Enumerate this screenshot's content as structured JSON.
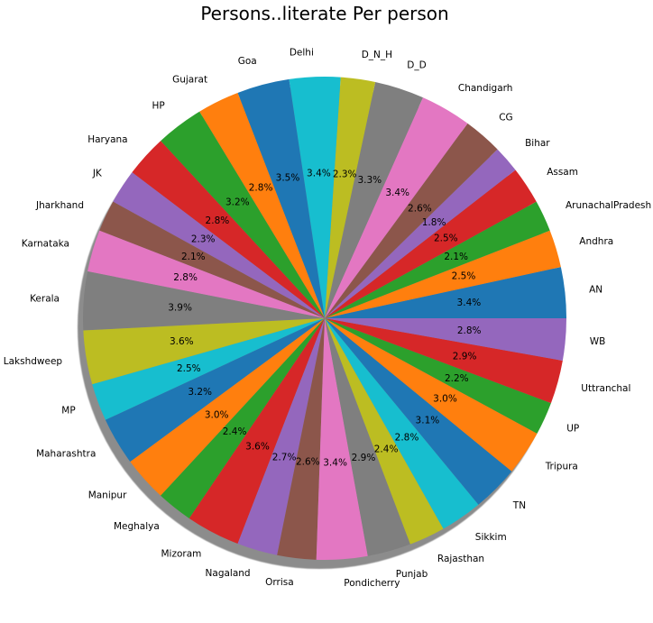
{
  "chart_data": {
    "type": "pie",
    "title": "Persons..literate Per person",
    "start_angle_deg": 0,
    "direction": "counterclockwise",
    "shadow": true,
    "legend": "none",
    "palette": [
      "#1f77b4",
      "#ff7f0e",
      "#2ca02c",
      "#d62728",
      "#9467bd",
      "#8c564b",
      "#e377c2",
      "#7f7f7f",
      "#bcbd22",
      "#17becf"
    ],
    "slices": [
      {
        "label": "AN",
        "value": 3.4,
        "pct_label": "3.4%"
      },
      {
        "label": "Andhra",
        "value": 2.5,
        "pct_label": "2.5%"
      },
      {
        "label": "ArunachalPradesh",
        "value": 2.1,
        "pct_label": "2.1%"
      },
      {
        "label": "Assam",
        "value": 2.5,
        "pct_label": "2.5%"
      },
      {
        "label": "Bihar",
        "value": 1.8,
        "pct_label": "1.8%"
      },
      {
        "label": "CG",
        "value": 2.6,
        "pct_label": "2.6%"
      },
      {
        "label": "Chandigarh",
        "value": 3.4,
        "pct_label": "3.4%"
      },
      {
        "label": "D_D",
        "value": 3.3,
        "pct_label": "3.3%"
      },
      {
        "label": "D_N_H",
        "value": 2.3,
        "pct_label": "2.3%"
      },
      {
        "label": "Delhi",
        "value": 3.4,
        "pct_label": "3.4%"
      },
      {
        "label": "Goa",
        "value": 3.5,
        "pct_label": "3.5%"
      },
      {
        "label": "Gujarat",
        "value": 2.8,
        "pct_label": "2.8%"
      },
      {
        "label": "HP",
        "value": 3.2,
        "pct_label": "3.2%"
      },
      {
        "label": "Haryana",
        "value": 2.8,
        "pct_label": "2.8%"
      },
      {
        "label": "JK",
        "value": 2.3,
        "pct_label": "2.3%"
      },
      {
        "label": "Jharkhand",
        "value": 2.1,
        "pct_label": "2.1%"
      },
      {
        "label": "Karnataka",
        "value": 2.8,
        "pct_label": "2.8%"
      },
      {
        "label": "Kerala",
        "value": 3.9,
        "pct_label": "3.9%"
      },
      {
        "label": "Lakshdweep",
        "value": 3.6,
        "pct_label": "3.6%"
      },
      {
        "label": "MP",
        "value": 2.5,
        "pct_label": "2.5%"
      },
      {
        "label": "Maharashtra",
        "value": 3.2,
        "pct_label": "3.2%"
      },
      {
        "label": "Manipur",
        "value": 3.0,
        "pct_label": "3.0%"
      },
      {
        "label": "Meghalya",
        "value": 2.4,
        "pct_label": "2.4%"
      },
      {
        "label": "Mizoram",
        "value": 3.6,
        "pct_label": "3.6%"
      },
      {
        "label": "Nagaland",
        "value": 2.7,
        "pct_label": "2.7%"
      },
      {
        "label": "Orrisa",
        "value": 2.6,
        "pct_label": "2.6%"
      },
      {
        "label": "Pondicherry",
        "value": 3.4,
        "pct_label": "3.4%"
      },
      {
        "label": "Punjab",
        "value": 2.9,
        "pct_label": "2.9%"
      },
      {
        "label": "Rajasthan",
        "value": 2.4,
        "pct_label": "2.4%"
      },
      {
        "label": "Sikkim",
        "value": 2.8,
        "pct_label": "2.8%"
      },
      {
        "label": "TN",
        "value": 3.1,
        "pct_label": "3.1%"
      },
      {
        "label": "Tripura",
        "value": 3.0,
        "pct_label": "3.0%"
      },
      {
        "label": "UP",
        "value": 2.2,
        "pct_label": "2.2%"
      },
      {
        "label": "Uttranchal",
        "value": 2.9,
        "pct_label": "2.9%"
      },
      {
        "label": "WB",
        "value": 2.8,
        "pct_label": "2.8%"
      }
    ]
  }
}
